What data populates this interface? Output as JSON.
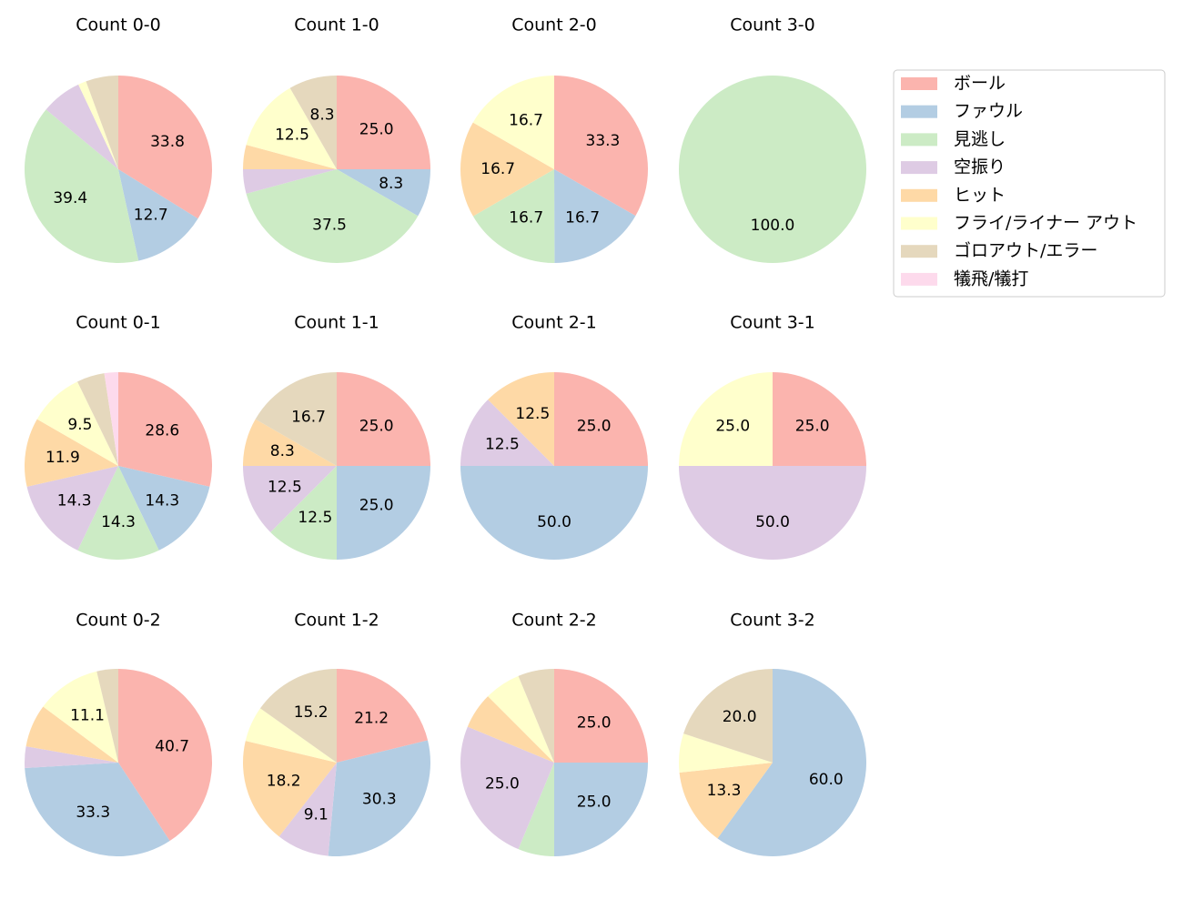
{
  "chart_data": [
    {
      "type": "pie",
      "title": "Count 0-0",
      "categories": [
        "ボール",
        "ファウル",
        "見逃し",
        "空振り",
        "ヒット",
        "フライ/ライナー アウト",
        "ゴロアウト/エラー",
        "犠飛/犠打"
      ],
      "colors": [
        "#fbb4ae",
        "#b3cde3",
        "#ccebc5",
        "#decbe4",
        "#fed9a6",
        "#ffffcc",
        "#e5d8bd",
        "#fddaec"
      ],
      "values": [
        33.8,
        12.7,
        39.4,
        7.0,
        0,
        1.4,
        5.6,
        0
      ],
      "value_labels": [
        "33.8",
        "12.7",
        "39.4",
        null,
        null,
        null,
        null,
        null
      ]
    },
    {
      "type": "pie",
      "title": "Count 1-0",
      "categories": [
        "ボール",
        "ファウル",
        "見逃し",
        "空振り",
        "ヒット",
        "フライ/ライナー アウト",
        "ゴロアウト/エラー",
        "犠飛/犠打"
      ],
      "colors": [
        "#fbb4ae",
        "#b3cde3",
        "#ccebc5",
        "#decbe4",
        "#fed9a6",
        "#ffffcc",
        "#e5d8bd",
        "#fddaec"
      ],
      "values": [
        25,
        8.3,
        37.5,
        4.2,
        4.2,
        12.5,
        8.3,
        0
      ],
      "value_labels": [
        "25.0",
        "8.3",
        "37.5",
        null,
        null,
        "12.5",
        "8.3",
        null
      ]
    },
    {
      "type": "pie",
      "title": "Count 2-0",
      "categories": [
        "ボール",
        "ファウル",
        "見逃し",
        "空振り",
        "ヒット",
        "フライ/ライナー アウト",
        "ゴロアウト/エラー",
        "犠飛/犠打"
      ],
      "colors": [
        "#fbb4ae",
        "#b3cde3",
        "#ccebc5",
        "#decbe4",
        "#fed9a6",
        "#ffffcc",
        "#e5d8bd",
        "#fddaec"
      ],
      "values": [
        33.3,
        16.7,
        16.7,
        0,
        16.7,
        16.7,
        0,
        0
      ],
      "value_labels": [
        "33.3",
        "16.7",
        "16.7",
        null,
        "16.7",
        "16.7",
        null,
        null
      ]
    },
    {
      "type": "pie",
      "title": "Count 3-0",
      "categories": [
        "ボール",
        "ファウル",
        "見逃し",
        "空振り",
        "ヒット",
        "フライ/ライナー アウト",
        "ゴロアウト/エラー",
        "犠飛/犠打"
      ],
      "colors": [
        "#fbb4ae",
        "#b3cde3",
        "#ccebc5",
        "#decbe4",
        "#fed9a6",
        "#ffffcc",
        "#e5d8bd",
        "#fddaec"
      ],
      "values": [
        0,
        0,
        100,
        0,
        0,
        0,
        0,
        0
      ],
      "value_labels": [
        null,
        null,
        "100.0",
        null,
        null,
        null,
        null,
        null
      ]
    },
    {
      "type": "pie",
      "title": "Count 0-1",
      "categories": [
        "ボール",
        "ファウル",
        "見逃し",
        "空振り",
        "ヒット",
        "フライ/ライナー アウト",
        "ゴロアウト/エラー",
        "犠飛/犠打"
      ],
      "colors": [
        "#fbb4ae",
        "#b3cde3",
        "#ccebc5",
        "#decbe4",
        "#fed9a6",
        "#ffffcc",
        "#e5d8bd",
        "#fddaec"
      ],
      "values": [
        28.6,
        14.3,
        14.3,
        14.3,
        11.9,
        9.5,
        4.8,
        2.4
      ],
      "value_labels": [
        "28.6",
        "14.3",
        "14.3",
        "14.3",
        "11.9",
        "9.5",
        null,
        null
      ]
    },
    {
      "type": "pie",
      "title": "Count 1-1",
      "categories": [
        "ボール",
        "ファウル",
        "見逃し",
        "空振り",
        "ヒット",
        "フライ/ライナー アウト",
        "ゴロアウト/エラー",
        "犠飛/犠打"
      ],
      "colors": [
        "#fbb4ae",
        "#b3cde3",
        "#ccebc5",
        "#decbe4",
        "#fed9a6",
        "#ffffcc",
        "#e5d8bd",
        "#fddaec"
      ],
      "values": [
        25,
        25,
        12.5,
        12.5,
        8.3,
        0,
        16.7,
        0
      ],
      "value_labels": [
        "25.0",
        "25.0",
        "12.5",
        "12.5",
        "8.3",
        null,
        "16.7",
        null
      ]
    },
    {
      "type": "pie",
      "title": "Count 2-1",
      "categories": [
        "ボール",
        "ファウル",
        "見逃し",
        "空振り",
        "ヒット",
        "フライ/ライナー アウト",
        "ゴロアウト/エラー",
        "犠飛/犠打"
      ],
      "colors": [
        "#fbb4ae",
        "#b3cde3",
        "#ccebc5",
        "#decbe4",
        "#fed9a6",
        "#ffffcc",
        "#e5d8bd",
        "#fddaec"
      ],
      "values": [
        25,
        50,
        0,
        12.5,
        12.5,
        0,
        0,
        0
      ],
      "value_labels": [
        "25.0",
        "50.0",
        null,
        "12.5",
        "12.5",
        null,
        null,
        null
      ]
    },
    {
      "type": "pie",
      "title": "Count 3-1",
      "categories": [
        "ボール",
        "ファウル",
        "見逃し",
        "空振り",
        "ヒット",
        "フライ/ライナー アウト",
        "ゴロアウト/エラー",
        "犠飛/犠打"
      ],
      "colors": [
        "#fbb4ae",
        "#b3cde3",
        "#ccebc5",
        "#decbe4",
        "#fed9a6",
        "#ffffcc",
        "#e5d8bd",
        "#fddaec"
      ],
      "values": [
        25,
        0,
        0,
        50,
        0,
        25,
        0,
        0
      ],
      "value_labels": [
        "25.0",
        null,
        null,
        "50.0",
        null,
        "25.0",
        null,
        null
      ]
    },
    {
      "type": "pie",
      "title": "Count 0-2",
      "categories": [
        "ボール",
        "ファウル",
        "見逃し",
        "空振り",
        "ヒット",
        "フライ/ライナー アウト",
        "ゴロアウト/エラー",
        "犠飛/犠打"
      ],
      "colors": [
        "#fbb4ae",
        "#b3cde3",
        "#ccebc5",
        "#decbe4",
        "#fed9a6",
        "#ffffcc",
        "#e5d8bd",
        "#fddaec"
      ],
      "values": [
        40.7,
        33.3,
        0,
        3.7,
        7.4,
        11.1,
        3.7,
        0
      ],
      "value_labels": [
        "40.7",
        "33.3",
        null,
        null,
        null,
        "11.1",
        null,
        null
      ]
    },
    {
      "type": "pie",
      "title": "Count 1-2",
      "categories": [
        "ボール",
        "ファウル",
        "見逃し",
        "空振り",
        "ヒット",
        "フライ/ライナー アウト",
        "ゴロアウト/エラー",
        "犠飛/犠打"
      ],
      "colors": [
        "#fbb4ae",
        "#b3cde3",
        "#ccebc5",
        "#decbe4",
        "#fed9a6",
        "#ffffcc",
        "#e5d8bd",
        "#fddaec"
      ],
      "values": [
        21.2,
        30.3,
        0,
        9.1,
        18.2,
        6.1,
        15.2,
        0
      ],
      "value_labels": [
        "21.2",
        "30.3",
        null,
        "9.1",
        "18.2",
        null,
        "15.2",
        null
      ]
    },
    {
      "type": "pie",
      "title": "Count 2-2",
      "categories": [
        "ボール",
        "ファウル",
        "見逃し",
        "空振り",
        "ヒット",
        "フライ/ライナー アウト",
        "ゴロアウト/エラー",
        "犠飛/犠打"
      ],
      "colors": [
        "#fbb4ae",
        "#b3cde3",
        "#ccebc5",
        "#decbe4",
        "#fed9a6",
        "#ffffcc",
        "#e5d8bd",
        "#fddaec"
      ],
      "values": [
        25,
        25,
        6.25,
        25,
        6.25,
        6.25,
        6.25,
        0
      ],
      "value_labels": [
        "25.0",
        "25.0",
        null,
        "25.0",
        null,
        null,
        null,
        null
      ]
    },
    {
      "type": "pie",
      "title": "Count 3-2",
      "categories": [
        "ボール",
        "ファウル",
        "見逃し",
        "空振り",
        "ヒット",
        "フライ/ライナー アウト",
        "ゴロアウト/エラー",
        "犠飛/犠打"
      ],
      "colors": [
        "#fbb4ae",
        "#b3cde3",
        "#ccebc5",
        "#decbe4",
        "#fed9a6",
        "#ffffcc",
        "#e5d8bd",
        "#fddaec"
      ],
      "values": [
        0,
        60,
        0,
        0,
        13.3,
        6.7,
        20,
        0
      ],
      "value_labels": [
        null,
        "60.0",
        null,
        null,
        "13.3",
        null,
        "20.0",
        null
      ]
    }
  ]
}
